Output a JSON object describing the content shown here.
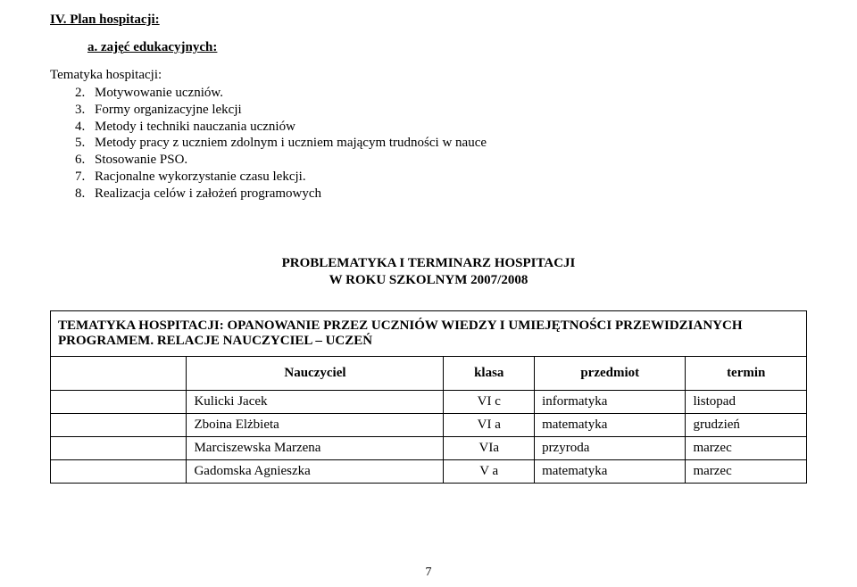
{
  "header": {
    "section": "IV. Plan hospitacji:",
    "sub": "a.    zajęć edukacyjnych:",
    "topic_label": "Tematyka hospitacji:"
  },
  "list": [
    {
      "n": "2.",
      "t": "Motywowanie uczniów."
    },
    {
      "n": "3.",
      "t": "Formy organizacyjne lekcji"
    },
    {
      "n": "4.",
      "t": "Metody i techniki nauczania uczniów"
    },
    {
      "n": "5.",
      "t": "Metody pracy z uczniem zdolnym i uczniem mającym trudności w nauce"
    },
    {
      "n": "6.",
      "t": "Stosowanie PSO."
    },
    {
      "n": "7.",
      "t": "Racjonalne wykorzystanie czasu lekcji."
    },
    {
      "n": "8.",
      "t": "Realizacja celów i założeń programowych"
    }
  ],
  "center": {
    "line1": "PROBLEMATYKA I TERMINARZ HOSPITACJI",
    "line2": "W ROKU SZKOLNYM 2007/2008"
  },
  "table": {
    "theme": "TEMATYKA HOSPITACJI: OPANOWANIE PRZEZ UCZNIÓW WIEDZY I UMIEJĘTNOŚCI PRZEWIDZIANYCH PROGRAMEM. RELACJE NAUCZYCIEL – UCZEŃ",
    "columns": {
      "name": "Nauczyciel",
      "klass": "klasa",
      "subject": "przedmiot",
      "term": "termin"
    },
    "rows": [
      {
        "name": "Kulicki Jacek",
        "klass": "VI c",
        "subject": "informatyka",
        "term": "listopad"
      },
      {
        "name": "Zboina Elżbieta",
        "klass": "VI a",
        "subject": "matematyka",
        "term": "grudzień"
      },
      {
        "name": "Marciszewska Marzena",
        "klass": "VIa",
        "subject": "przyroda",
        "term": "marzec"
      },
      {
        "name": "Gadomska Agnieszka",
        "klass": "V a",
        "subject": "matematyka",
        "term": "marzec"
      }
    ]
  },
  "page_number": "7"
}
